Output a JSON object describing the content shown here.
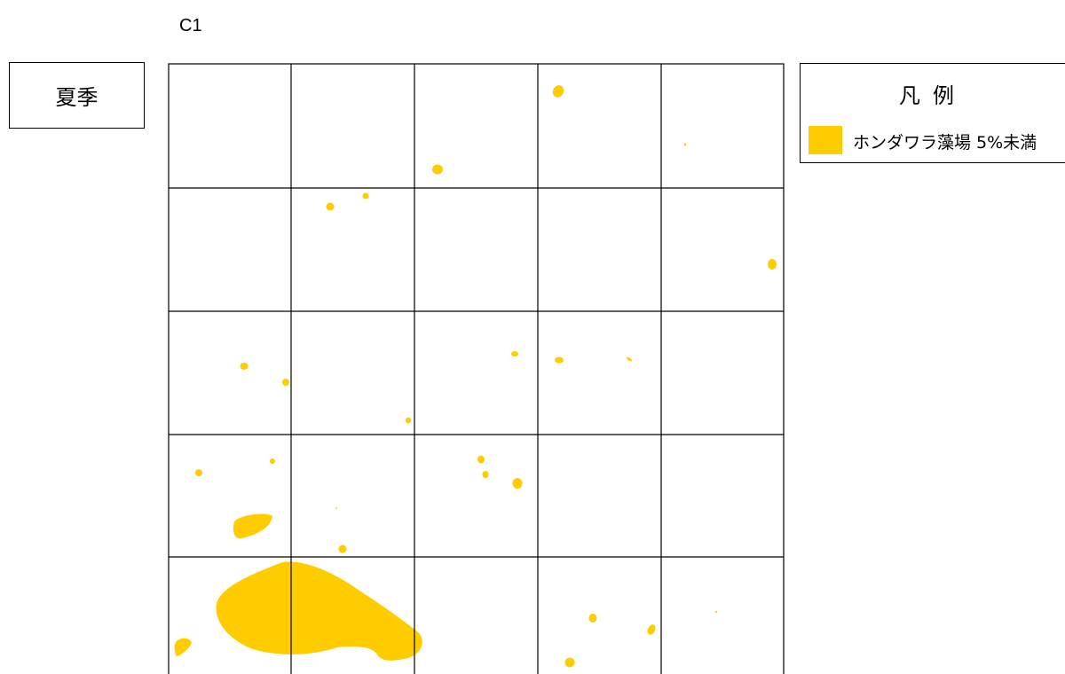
{
  "header": {
    "map_code": "C1"
  },
  "season": {
    "label": "夏季"
  },
  "legend": {
    "title": "凡例",
    "items": [
      {
        "label": "ホンダワラ藻場 5%未満",
        "color": "#ffcc00"
      }
    ]
  },
  "map": {
    "grid": {
      "columns": 5,
      "rows": 5
    },
    "seaweed_color": "#ffcc00",
    "line_color": "#000000"
  }
}
